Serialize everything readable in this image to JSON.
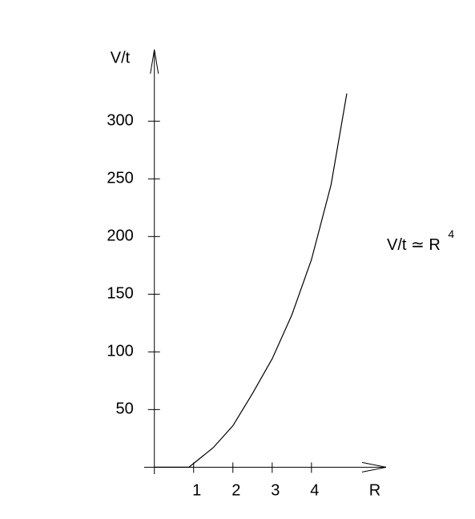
{
  "chart_data": {
    "type": "line",
    "y_label": "V/t",
    "x_label": "R",
    "annotation": "V/t ≃ R",
    "annotation_exponent": "4",
    "x": [
      0,
      0.88,
      1.5,
      2,
      2.5,
      3,
      3.5,
      4,
      4.5,
      4.9
    ],
    "series": [
      {
        "color": "#000000",
        "values": [
          0,
          0,
          17,
          36,
          64,
          94,
          132,
          180,
          245,
          324
        ]
      }
    ],
    "xlim": [
      -0.3,
      5.9
    ],
    "xticks": [
      1,
      2,
      3,
      4
    ],
    "ylim": [
      -6,
      362
    ],
    "yticks": [
      50,
      100,
      150,
      200,
      250,
      300
    ],
    "grid": false
  }
}
